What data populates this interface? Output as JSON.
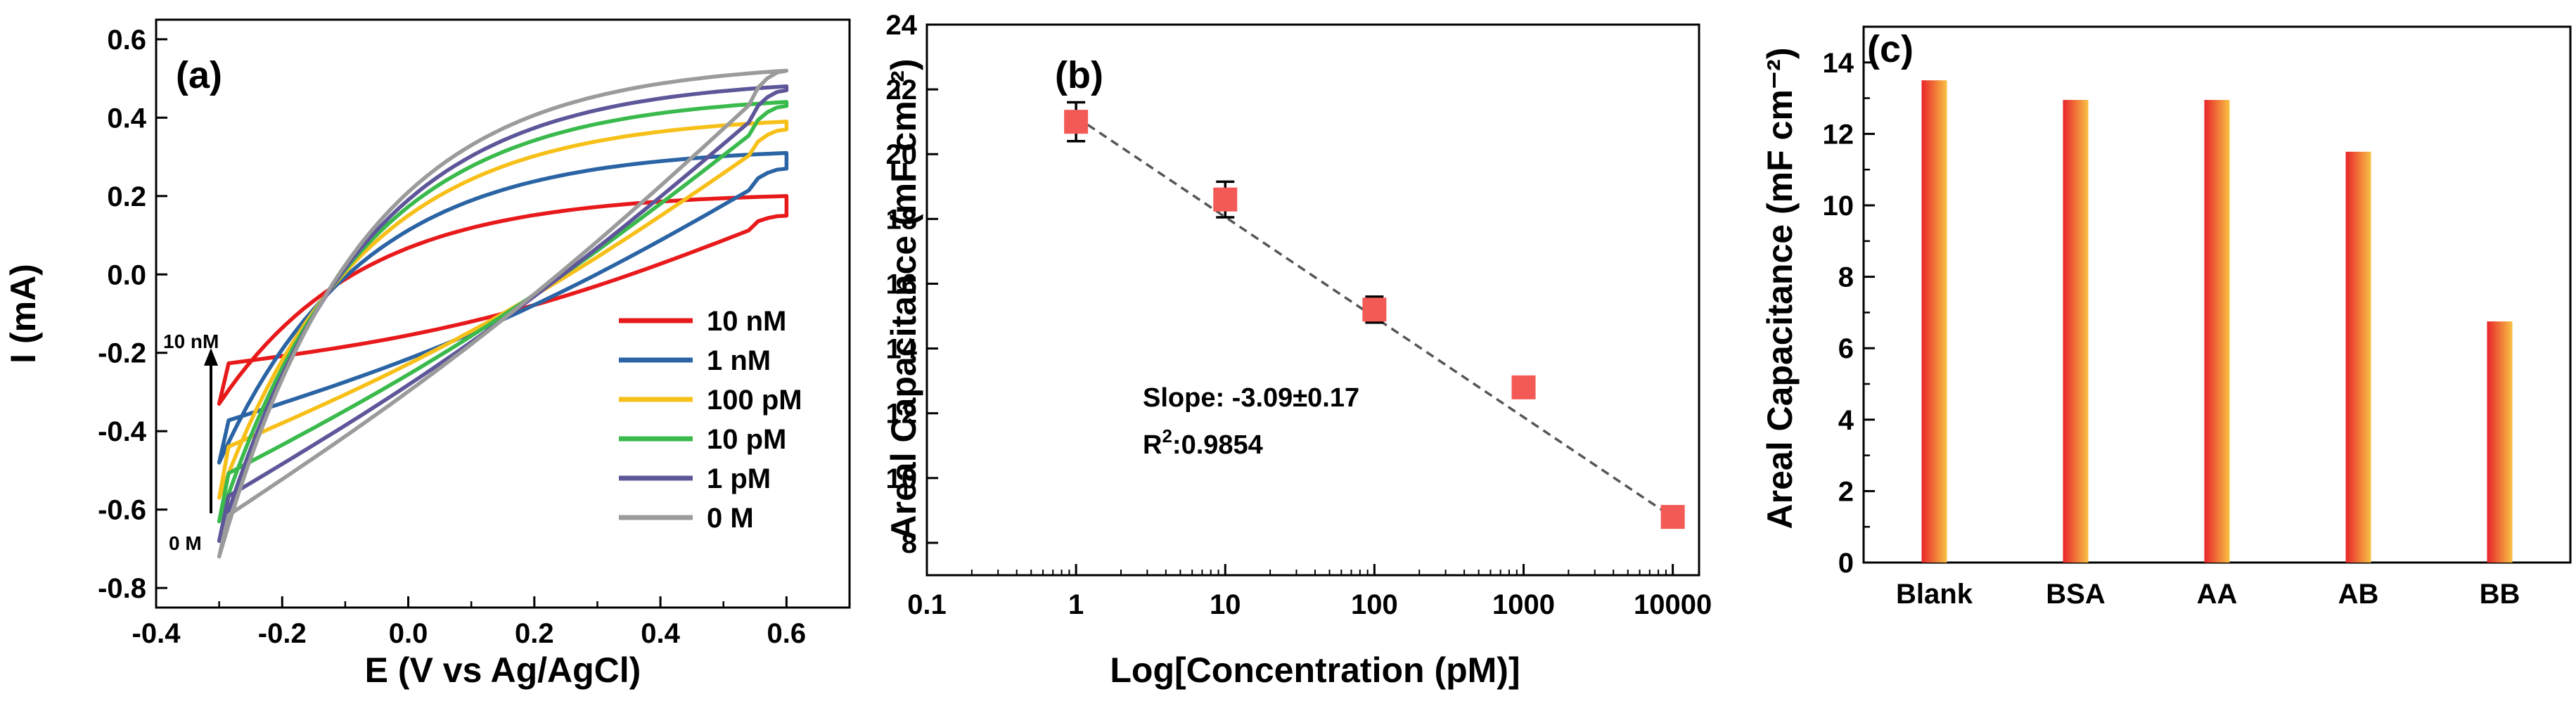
{
  "colors": {
    "cv": [
      "#e8191b",
      "#2a64a4",
      "#f7c019",
      "#3aba4c",
      "#5d579a",
      "#9b9b9b"
    ],
    "fit_line": "#555555",
    "marker": "#f35a55",
    "bar_start": "#e8242a",
    "bar_end": "#f8c144"
  },
  "chart_data": [
    {
      "type": "line",
      "panel_label": "(a)",
      "title": "",
      "xlabel": "E (V vs Ag/AgCl)",
      "ylabel": "I (mA)",
      "xlim": [
        -0.4,
        0.7
      ],
      "ylim": [
        -0.85,
        0.65
      ],
      "xticks": [
        "-0.4",
        "-0.2",
        "0.0",
        "0.2",
        "0.4",
        "0.6"
      ],
      "yticks": [
        "-0.8",
        "-0.6",
        "-0.4",
        "-0.2",
        "0.0",
        "0.2",
        "0.4",
        "0.6"
      ],
      "legend_position": "bottom-right",
      "annotation_top": "10 nM",
      "annotation_bottom": "0 M",
      "series": [
        {
          "name": "10 nM",
          "e_min": -0.3,
          "e_max": 0.6,
          "i_start": -0.33,
          "i_end": 0.15,
          "fwd_knee": 0.2,
          "rev_low": -0.23
        },
        {
          "name": "1 nM",
          "e_min": -0.3,
          "e_max": 0.6,
          "i_start": -0.48,
          "i_end": 0.27,
          "fwd_knee": 0.31,
          "rev_low": -0.38
        },
        {
          "name": "100 pM",
          "e_min": -0.3,
          "e_max": 0.6,
          "i_start": -0.57,
          "i_end": 0.37,
          "fwd_knee": 0.39,
          "rev_low": -0.45
        },
        {
          "name": "10 pM",
          "e_min": -0.3,
          "e_max": 0.6,
          "i_start": -0.63,
          "i_end": 0.43,
          "fwd_knee": 0.44,
          "rev_low": -0.52
        },
        {
          "name": "1 pM",
          "e_min": -0.3,
          "e_max": 0.6,
          "i_start": -0.68,
          "i_end": 0.47,
          "fwd_knee": 0.48,
          "rev_low": -0.58
        },
        {
          "name": "0 M",
          "e_min": -0.3,
          "e_max": 0.6,
          "i_start": -0.72,
          "i_end": 0.52,
          "fwd_knee": 0.52,
          "rev_low": -0.63
        }
      ]
    },
    {
      "type": "scatter",
      "panel_label": "(b)",
      "title": "",
      "xlabel": "Log[Concentration (pM)]",
      "ylabel": "Areal Capacitance (mF cm⁻²)",
      "xscale": "log",
      "xlim": [
        0.1,
        15000
      ],
      "ylim": [
        7,
        24
      ],
      "xticks": [
        0.1,
        1,
        10,
        100,
        1000,
        10000
      ],
      "xtick_labels": [
        "0.1",
        "1",
        "10",
        "100",
        "1000",
        "10000"
      ],
      "yticks": [
        "8",
        "10",
        "12",
        "14",
        "16",
        "18",
        "20",
        "22",
        "24"
      ],
      "x": [
        1,
        10,
        100,
        1000,
        10000
      ],
      "y": [
        21.0,
        18.6,
        15.2,
        12.8,
        8.8
      ],
      "yerr": [
        0.6,
        0.55,
        0.4,
        0.3,
        0.3
      ],
      "fit_slope": -3.09,
      "fit_intercept": 21.15,
      "annotation_slope": "Slope: -3.09±0.17",
      "annotation_r2_prefix": "R",
      "annotation_r2_sup": "2",
      "annotation_r2_value": ":0.9854"
    },
    {
      "type": "bar",
      "panel_label": "(c)",
      "title": "",
      "xlabel": "",
      "ylabel": "Areal Capacitance (mF cm⁻²)",
      "categories": [
        "Blank",
        "BSA",
        "AA",
        "AB",
        "BB"
      ],
      "values": [
        13.5,
        12.95,
        12.95,
        11.5,
        6.75
      ],
      "ylim": [
        0,
        15
      ],
      "yticks": [
        "0",
        "2",
        "4",
        "6",
        "8",
        "10",
        "12",
        "14"
      ]
    }
  ]
}
